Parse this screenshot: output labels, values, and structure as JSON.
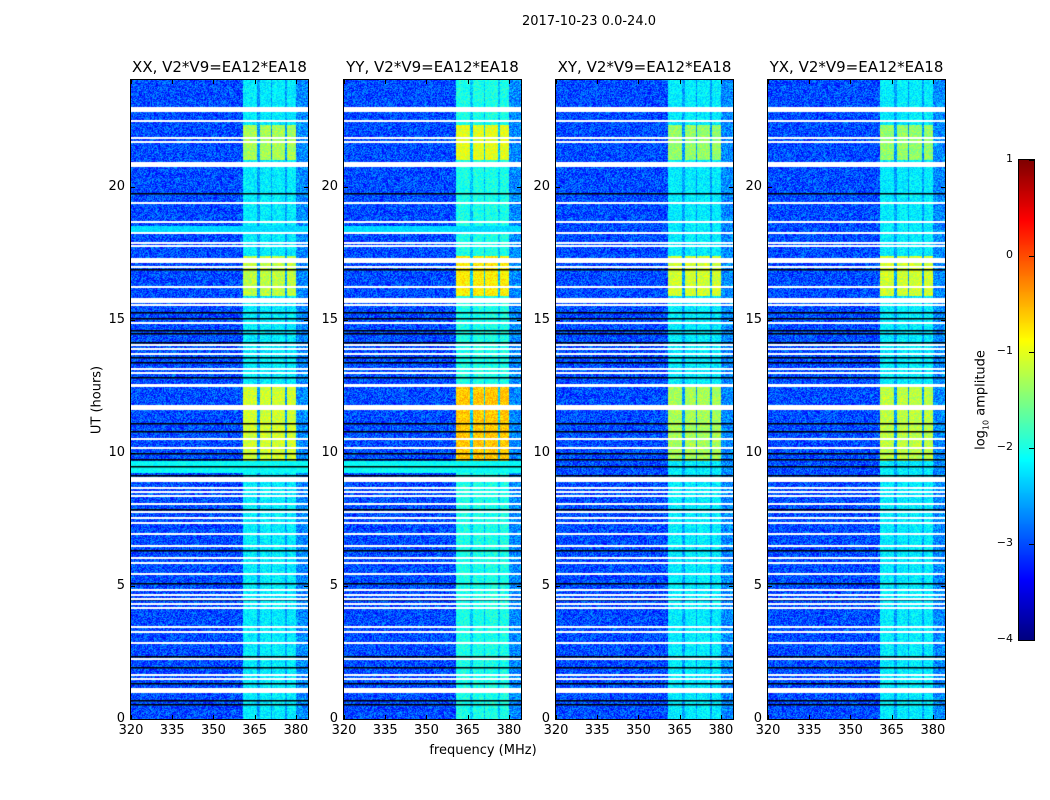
{
  "chart_data": {
    "type": "heatmap",
    "title": "2017-10-23 0.0-24.0",
    "xlabel": "frequency (MHz)",
    "ylabel": "UT (hours)",
    "xlim": [
      320,
      384.4
    ],
    "ylim": [
      0,
      24
    ],
    "xticks": [
      320,
      335,
      350,
      365,
      380
    ],
    "yticks": [
      0,
      5,
      10,
      15,
      20
    ],
    "colormap": "jet",
    "colorbar": {
      "label_prefix": "log",
      "label_sub": "10",
      "label_suffix": " amplitude",
      "range": [
        -4,
        1
      ],
      "ticks": [
        1,
        0,
        -1,
        -2,
        -3,
        -4
      ]
    },
    "background_level": -3.0,
    "panels": [
      {
        "title": "XX, V2*V9=EA12*EA18",
        "band_level": -2.2,
        "active": [
          [
            21.0,
            22.3,
            -1.3
          ],
          [
            15.9,
            17.4,
            -1.2
          ],
          [
            9.7,
            12.5,
            -1.1
          ]
        ],
        "broadband": [
          [
            9.25,
            9.7,
            -2.1
          ],
          [
            18.3,
            18.5,
            -2.3
          ]
        ]
      },
      {
        "title": "YY, V2*V9=EA12*EA18",
        "band_level": -2.0,
        "active": [
          [
            21.0,
            22.3,
            -1.0
          ],
          [
            15.9,
            17.4,
            -0.8
          ],
          [
            9.7,
            12.5,
            -0.6
          ]
        ],
        "broadband": [
          [
            9.25,
            9.7,
            -2.1
          ],
          [
            18.3,
            18.5,
            -2.3
          ]
        ]
      },
      {
        "title": "XY, V2*V9=EA12*EA18",
        "band_level": -2.2,
        "active": [
          [
            21.0,
            22.3,
            -1.4
          ],
          [
            15.9,
            17.4,
            -1.1
          ],
          [
            9.7,
            12.5,
            -1.3
          ]
        ],
        "broadband": []
      },
      {
        "title": "YX, V2*V9=EA12*EA18",
        "band_level": -2.2,
        "active": [
          [
            21.0,
            22.3,
            -1.4
          ],
          [
            15.9,
            17.4,
            -1.1
          ],
          [
            9.7,
            12.5,
            -1.2
          ]
        ],
        "broadband": []
      }
    ],
    "rfi_bands_mhz": [
      [
        360.7,
        365.5
      ],
      [
        366.6,
        370.6
      ],
      [
        371.3,
        375.7
      ],
      [
        376.4,
        380.0
      ]
    ],
    "flagged_thick_hours": [
      22.9,
      20.85,
      17.25,
      15.75,
      11.7,
      9.0,
      1.1
    ],
    "flagged_thin_hours": [
      22.5,
      21.85,
      21.7,
      19.4,
      18.7,
      18.3,
      17.9,
      17.8,
      17.0,
      16.25,
      15.6,
      14.9,
      14.1,
      13.95,
      13.75,
      13.2,
      13.05,
      12.6,
      12.55,
      10.55,
      10.2,
      8.7,
      8.55,
      8.4,
      8.1,
      7.8,
      7.6,
      7.4,
      7.0,
      6.55,
      6.1,
      5.9,
      5.5,
      4.9,
      4.7,
      4.55,
      4.35,
      4.2,
      3.5,
      3.3,
      2.9,
      2.3,
      1.7,
      1.55
    ],
    "dark_rows_hours": [
      19.75,
      17.9,
      16.9,
      15.3,
      15.05,
      14.6,
      14.5,
      14.15,
      13.6,
      13.4,
      12.85,
      11.1,
      10.8,
      10.0,
      9.75,
      9.5,
      9.15,
      7.9,
      6.35,
      5.1,
      4.5,
      2.35,
      1.95,
      1.35,
      0.7,
      0.55
    ]
  }
}
